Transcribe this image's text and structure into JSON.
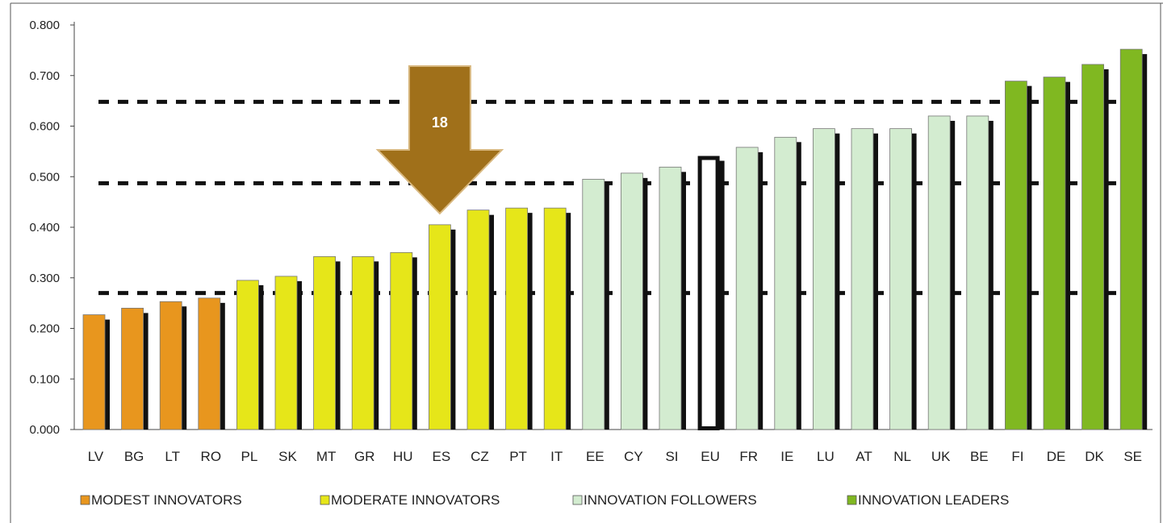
{
  "chart_data": {
    "type": "bar",
    "categories": [
      "LV",
      "BG",
      "LT",
      "RO",
      "PL",
      "SK",
      "MT",
      "GR",
      "HU",
      "ES",
      "CZ",
      "PT",
      "IT",
      "EE",
      "CY",
      "SI",
      "EU",
      "FR",
      "IE",
      "LU",
      "AT",
      "NL",
      "UK",
      "BE",
      "FI",
      "DE",
      "DK",
      "SE"
    ],
    "values": [
      0.227,
      0.24,
      0.253,
      0.26,
      0.295,
      0.303,
      0.342,
      0.342,
      0.35,
      0.405,
      0.434,
      0.438,
      0.438,
      0.495,
      0.507,
      0.519,
      0.541,
      0.558,
      0.578,
      0.595,
      0.595,
      0.595,
      0.62,
      0.62,
      0.689,
      0.697,
      0.722,
      0.752
    ],
    "groups": [
      "modest",
      "modest",
      "modest",
      "modest",
      "moderate",
      "moderate",
      "moderate",
      "moderate",
      "moderate",
      "moderate",
      "moderate",
      "moderate",
      "moderate",
      "followers",
      "followers",
      "followers",
      "eu",
      "followers",
      "followers",
      "followers",
      "followers",
      "followers",
      "followers",
      "followers",
      "leaders",
      "leaders",
      "leaders",
      "leaders"
    ],
    "group_colors": {
      "modest": "#e8961e",
      "moderate": "#e6e619",
      "followers": "#d3ecd0",
      "eu": "#ffffff",
      "leaders": "#80b821"
    },
    "y_ticks": [
      "0.000",
      "0.100",
      "0.200",
      "0.300",
      "0.400",
      "0.500",
      "0.600",
      "0.700",
      "0.800"
    ],
    "ylim": [
      0,
      0.8
    ],
    "reference_lines": [
      0.27,
      0.487,
      0.648
    ],
    "grid": false,
    "legend_position": "bottom-left",
    "legend": [
      {
        "label": "MODEST INNOVATORS",
        "color": "#e8961e"
      },
      {
        "label": "MODERATE INNOVATORS",
        "color": "#e6e619"
      },
      {
        "label": "INNOVATION FOLLOWERS",
        "color": "#d3ecd0"
      },
      {
        "label": "INNOVATION LEADERS",
        "color": "#80b821"
      }
    ],
    "annotation": {
      "text": "18",
      "target_category": "ES",
      "color": "#a0701a"
    }
  }
}
